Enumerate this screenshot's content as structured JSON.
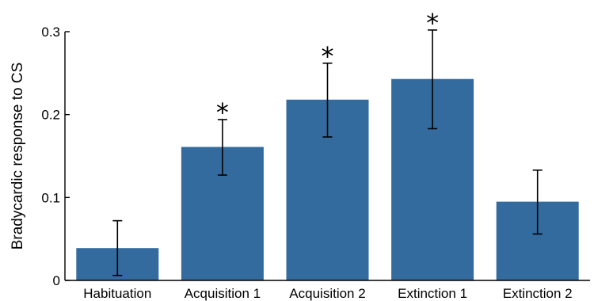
{
  "chart_data": {
    "type": "bar",
    "title": "",
    "xlabel": "",
    "ylabel": "Bradycardic response to CS",
    "ylim": [
      0,
      0.3
    ],
    "yticks": [
      0,
      0.1,
      0.2,
      0.3
    ],
    "ytick_labels": [
      "0",
      "0.1",
      "0.2",
      "0.3"
    ],
    "grid": false,
    "bar_color": "#336b9e",
    "categories": [
      "Habituation",
      "Acquisition 1",
      "Acquisition 2",
      "Extinction 1",
      "Extinction 2"
    ],
    "values": [
      0.039,
      0.161,
      0.218,
      0.243,
      0.095
    ],
    "error_low": [
      0.006,
      0.127,
      0.173,
      0.183,
      0.056
    ],
    "error_high": [
      0.072,
      0.194,
      0.262,
      0.302,
      0.133
    ],
    "significance_markers": [
      "",
      "*",
      "*",
      "*",
      ""
    ]
  }
}
